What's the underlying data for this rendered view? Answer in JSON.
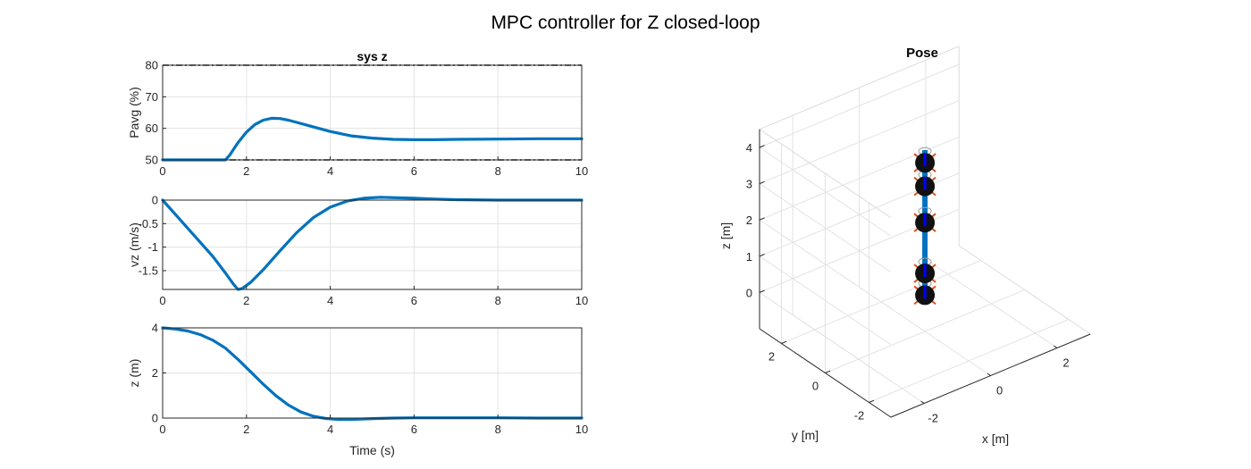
{
  "figure": {
    "title": "MPC controller for Z closed-loop",
    "series_color": "#0072BD"
  },
  "chart_data": [
    {
      "type": "line",
      "title": "sys z",
      "xlabel": "",
      "ylabel": "Pavg (%)",
      "xlim": [
        0,
        10
      ],
      "ylim": [
        50,
        80
      ],
      "xticks": [
        0,
        2,
        4,
        6,
        8,
        10
      ],
      "yticks": [
        50,
        60,
        70,
        80
      ],
      "grid": true,
      "constraints": [
        50,
        80
      ],
      "series": [
        {
          "x": [
            0,
            0.5,
            1.0,
            1.5,
            1.6,
            1.7,
            1.8,
            2.0,
            2.2,
            2.4,
            2.6,
            2.8,
            3.0,
            3.2,
            3.5,
            4.0,
            4.5,
            5.0,
            5.5,
            6.0,
            6.5,
            7.0,
            8.0,
            9.0,
            10.0
          ],
          "y": [
            50,
            50,
            50,
            50,
            51.5,
            53.5,
            55.5,
            58.8,
            61.2,
            62.6,
            63.2,
            63.1,
            62.6,
            61.9,
            60.8,
            59.0,
            57.6,
            56.9,
            56.5,
            56.4,
            56.4,
            56.5,
            56.6,
            56.7,
            56.7
          ]
        }
      ]
    },
    {
      "type": "line",
      "title": "",
      "xlabel": "",
      "ylabel": "vz (m/s)",
      "xlim": [
        0,
        10
      ],
      "ylim": [
        -1.9,
        0
      ],
      "xticks": [
        0,
        2,
        4,
        6,
        8,
        10
      ],
      "yticks": [
        -1.5,
        -1,
        -0.5,
        0
      ],
      "ytick_labels": [
        "-1.5",
        "-1",
        "-0.5",
        "0"
      ],
      "grid": true,
      "series": [
        {
          "x": [
            0,
            0.4,
            0.8,
            1.2,
            1.5,
            1.7,
            1.8,
            1.9,
            2.1,
            2.4,
            2.8,
            3.2,
            3.6,
            4.0,
            4.4,
            4.8,
            5.2,
            5.6,
            6.0,
            6.5,
            7.0,
            8.0,
            9.0,
            10.0
          ],
          "y": [
            0,
            -0.4,
            -0.8,
            -1.2,
            -1.55,
            -1.8,
            -1.9,
            -1.88,
            -1.75,
            -1.48,
            -1.08,
            -0.69,
            -0.37,
            -0.15,
            -0.02,
            0.04,
            0.06,
            0.05,
            0.04,
            0.02,
            0.01,
            0.0,
            0.0,
            0.0
          ]
        }
      ]
    },
    {
      "type": "line",
      "title": "",
      "xlabel": "Time (s)",
      "ylabel": "z (m)",
      "xlim": [
        0,
        10
      ],
      "ylim": [
        0,
        4
      ],
      "xticks": [
        0,
        2,
        4,
        6,
        8,
        10
      ],
      "yticks": [
        0,
        2,
        4
      ],
      "grid": true,
      "series": [
        {
          "x": [
            0,
            0.3,
            0.6,
            0.9,
            1.2,
            1.5,
            1.8,
            2.1,
            2.4,
            2.7,
            3.0,
            3.3,
            3.6,
            3.9,
            4.2,
            4.5,
            4.8,
            5.1,
            5.5,
            6.0,
            7.0,
            8.0,
            9.0,
            10.0
          ],
          "y": [
            4,
            3.95,
            3.86,
            3.7,
            3.45,
            3.1,
            2.6,
            2.05,
            1.5,
            1.0,
            0.58,
            0.27,
            0.08,
            -0.02,
            -0.06,
            -0.06,
            -0.04,
            -0.02,
            0.0,
            0.01,
            0.01,
            0.01,
            0.0,
            0.0
          ]
        }
      ]
    },
    {
      "type": "3d-pose",
      "title": "Pose",
      "xlabel": "x [m]",
      "ylabel": "y [m]",
      "zlabel": "z [m]",
      "xticks": [
        -2,
        0,
        2
      ],
      "yticks": [
        -2,
        0,
        2
      ],
      "zticks": [
        0,
        1,
        2,
        3,
        4
      ],
      "xlim": [
        -3,
        3
      ],
      "ylim": [
        -3,
        3
      ],
      "zlim": [
        -1,
        4.5
      ],
      "grid": true,
      "trajectory": {
        "x": 0,
        "y": 0,
        "z_from": -0.1,
        "z_to": 4.0
      },
      "markers_z": [
        0,
        0.6,
        2.0,
        3.0,
        3.65
      ]
    }
  ]
}
